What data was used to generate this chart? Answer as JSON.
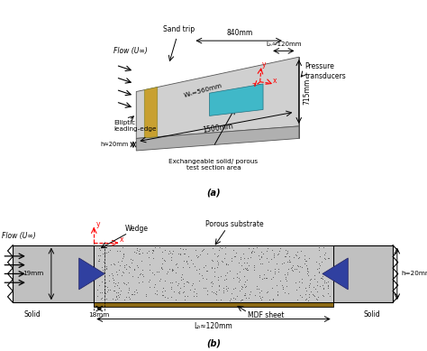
{
  "fig_width": 4.74,
  "fig_height": 3.89,
  "dpi": 100,
  "bg_color": "#ffffff",
  "panel_a": {
    "plate_color": "#d0d0d0",
    "plate_top_color": "#c8c8c8",
    "plate_side_color": "#b0b0b0",
    "sand_color": "#c8a030",
    "porous_color": "#40b8c8",
    "label_a": "(a)",
    "annotations": {
      "flow": "Flow (U∞)",
      "sand_trip": "Sand trip",
      "lp_label": "Lₕ≈120mm",
      "wp_label": "Wₕ=560mm",
      "dim_840": "840mm",
      "dim_1500": "1500mm",
      "dim_715": "715mm",
      "dim_h20": "h≈20mm",
      "elliptic": "Elliptic\nleading-edge",
      "pressure": "Pressure\ntransducers",
      "exchangeable": "Exchangeable solid/ porous\ntest section area"
    }
  },
  "panel_b": {
    "body_color": "#c0c0c0",
    "porous_fill": "#b8b8b8",
    "wedge_color": "#3040a0",
    "mdf_color": "#8B6914",
    "label_b": "(b)",
    "annotations": {
      "flow": "Flow (U∞)",
      "wedge": "Wedge",
      "porous_substrate": "Porous substrate",
      "mdf_sheet": "MDF sheet",
      "solid_left": "Solid",
      "solid_right": "Solid",
      "dim_19mm": "19mm",
      "dim_18mm": "18mm",
      "dim_h20": "h=20mm",
      "lp_label": "Lₕ≈120mm"
    }
  }
}
